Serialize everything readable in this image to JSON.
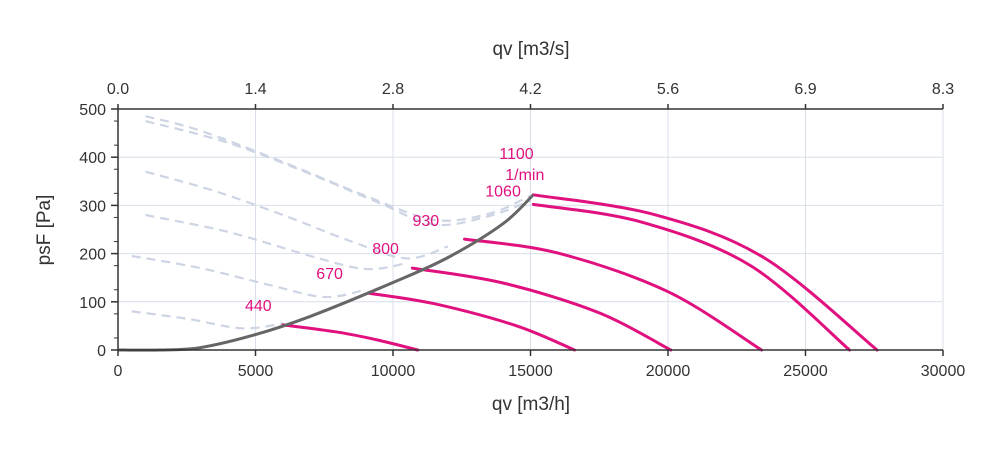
{
  "chart_data": {
    "type": "line",
    "xlabel": "qv [m3/h]",
    "x2label": "qv [m3/s]",
    "ylabel": "psF [Pa]",
    "xlim": [
      0,
      30000
    ],
    "ylim": [
      0,
      500
    ],
    "x_ticks": [
      "0",
      "5000",
      "10000",
      "15000",
      "20000",
      "25000",
      "30000"
    ],
    "x2_ticks": [
      "0.0",
      "1.4",
      "2.8",
      "4.2",
      "5.6",
      "6.9",
      "8.3"
    ],
    "y_ticks": [
      "0",
      "100",
      "200",
      "300",
      "400",
      "500"
    ],
    "grid": true,
    "colors": {
      "curve": "#e0117f",
      "limit": "#666666",
      "dashed": "#cdd5e4",
      "grid": "#d9dfea",
      "axis": "#333333"
    },
    "unit_label": "1/min",
    "series": [
      {
        "name": "440",
        "points": [
          [
            6000,
            52
          ],
          [
            8000,
            37
          ],
          [
            9500,
            20
          ],
          [
            10900,
            0
          ]
        ]
      },
      {
        "name": "670",
        "points": [
          [
            9100,
            118
          ],
          [
            11500,
            96
          ],
          [
            14500,
            50
          ],
          [
            16600,
            0
          ]
        ]
      },
      {
        "name": "800",
        "points": [
          [
            10700,
            170
          ],
          [
            14000,
            139
          ],
          [
            17500,
            77
          ],
          [
            20100,
            0
          ]
        ]
      },
      {
        "name": "930",
        "points": [
          [
            12600,
            230
          ],
          [
            16000,
            201
          ],
          [
            20000,
            121
          ],
          [
            23400,
            0
          ]
        ]
      },
      {
        "name": "1060",
        "points": [
          [
            15100,
            302
          ],
          [
            19000,
            266
          ],
          [
            23000,
            175
          ],
          [
            26600,
            0
          ]
        ]
      },
      {
        "name": "1100",
        "points": [
          [
            15100,
            322
          ],
          [
            19500,
            281
          ],
          [
            23500,
            191
          ],
          [
            27600,
            0
          ]
        ]
      }
    ],
    "limit_curve": [
      [
        0,
        0
      ],
      [
        1500,
        0
      ],
      [
        3000,
        5
      ],
      [
        5000,
        32
      ],
      [
        7000,
        70
      ],
      [
        10000,
        140
      ],
      [
        12000,
        192
      ],
      [
        14000,
        262
      ],
      [
        15100,
        322
      ]
    ],
    "dashed_curves": [
      [
        [
          1000,
          485
        ],
        [
          3000,
          455
        ],
        [
          6000,
          390
        ],
        [
          9000,
          320
        ],
        [
          11500,
          270
        ],
        [
          13500,
          283
        ],
        [
          15000,
          320
        ]
      ],
      [
        [
          1000,
          475
        ],
        [
          4000,
          430
        ],
        [
          7000,
          365
        ],
        [
          9500,
          305
        ],
        [
          11500,
          260
        ],
        [
          13500,
          278
        ],
        [
          15000,
          310
        ]
      ],
      [
        [
          1000,
          370
        ],
        [
          3500,
          330
        ],
        [
          6000,
          280
        ],
        [
          8500,
          225
        ],
        [
          10500,
          190
        ],
        [
          12000,
          215
        ]
      ],
      [
        [
          1000,
          280
        ],
        [
          4000,
          245
        ],
        [
          7000,
          195
        ],
        [
          9000,
          168
        ],
        [
          10500,
          180
        ]
      ],
      [
        [
          500,
          195
        ],
        [
          3000,
          170
        ],
        [
          5500,
          135
        ],
        [
          7500,
          110
        ],
        [
          9000,
          125
        ]
      ],
      [
        [
          500,
          80
        ],
        [
          2500,
          65
        ],
        [
          4500,
          45
        ],
        [
          6000,
          55
        ]
      ]
    ]
  }
}
